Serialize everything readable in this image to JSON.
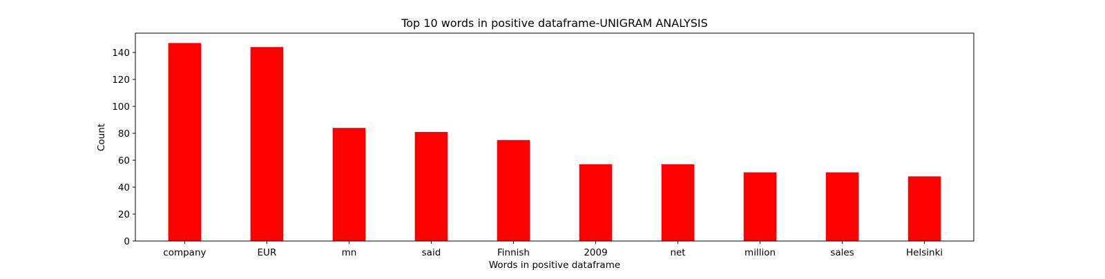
{
  "chart_data": {
    "type": "bar",
    "title": "Top 10 words in positive dataframe-UNIGRAM ANALYSIS",
    "xlabel": "Words in positive dataframe",
    "ylabel": "Count",
    "categories": [
      "company",
      "EUR",
      "mn",
      "said",
      "Finnish",
      "2009",
      "net",
      "million",
      "sales",
      "Helsinki"
    ],
    "values": [
      147,
      144,
      84,
      81,
      75,
      57,
      57,
      51,
      51,
      48
    ],
    "ylim": [
      0,
      154.35
    ],
    "yticks": [
      0,
      20,
      40,
      60,
      80,
      100,
      120,
      140
    ],
    "bar_color": "#ff0000",
    "grid": false,
    "legend": "none"
  }
}
